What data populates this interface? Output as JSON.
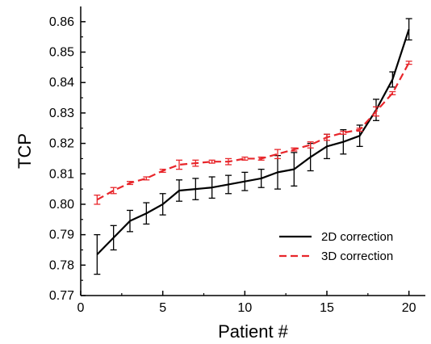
{
  "chart_data": {
    "type": "line",
    "xlabel": "Patient #",
    "ylabel": "TCP",
    "xlim": [
      0,
      21
    ],
    "ylim": [
      0.77,
      0.865
    ],
    "xticks": [
      0,
      5,
      10,
      15,
      20
    ],
    "yticks": [
      0.77,
      0.78,
      0.79,
      0.8,
      0.81,
      0.82,
      0.83,
      0.84,
      0.85,
      0.86
    ],
    "ytick_labels": [
      "0.77",
      "0.78",
      "0.79",
      "0.80",
      "0.81",
      "0.82",
      "0.83",
      "0.84",
      "0.85",
      "0.86"
    ],
    "grid": false,
    "legend_position": "bottom-right",
    "x": [
      1,
      2,
      3,
      4,
      5,
      6,
      7,
      8,
      9,
      10,
      11,
      12,
      13,
      14,
      15,
      16,
      17,
      18,
      19,
      20
    ],
    "series": [
      {
        "name": "2D correction",
        "color": "#000000",
        "line_style": "solid",
        "values": [
          0.7835,
          0.789,
          0.7945,
          0.797,
          0.8,
          0.8045,
          0.805,
          0.8055,
          0.8065,
          0.8075,
          0.8085,
          0.8105,
          0.8115,
          0.8155,
          0.819,
          0.8205,
          0.8225,
          0.831,
          0.841,
          0.8575
        ],
        "errors": [
          0.0065,
          0.004,
          0.0035,
          0.0035,
          0.0035,
          0.0035,
          0.0035,
          0.0035,
          0.003,
          0.003,
          0.003,
          0.0055,
          0.0055,
          0.0045,
          0.004,
          0.004,
          0.0035,
          0.0035,
          0.0025,
          0.0035
        ]
      },
      {
        "name": "3D correction",
        "color": "#e8262b",
        "line_style": "dashed",
        "values": [
          0.8015,
          0.8045,
          0.807,
          0.8085,
          0.811,
          0.813,
          0.8135,
          0.814,
          0.814,
          0.815,
          0.815,
          0.8165,
          0.818,
          0.8195,
          0.822,
          0.8235,
          0.8245,
          0.8305,
          0.8365,
          0.8465
        ],
        "errors": [
          0.0015,
          0.001,
          0.0005,
          0.0005,
          0.0005,
          0.0015,
          0.001,
          0.0005,
          0.001,
          0.0005,
          0.0005,
          0.0015,
          0.0005,
          0.001,
          0.001,
          0.0005,
          0.0005,
          0.0015,
          0.0005,
          0.0005
        ]
      }
    ]
  }
}
